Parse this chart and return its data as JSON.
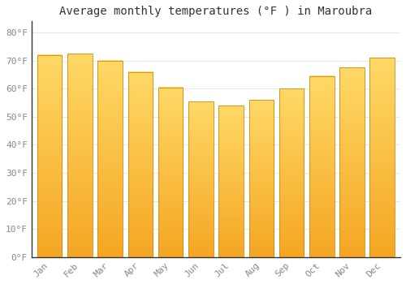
{
  "title": "Average monthly temperatures (°F ) in Maroubra",
  "months": [
    "Jan",
    "Feb",
    "Mar",
    "Apr",
    "May",
    "Jun",
    "Jul",
    "Aug",
    "Sep",
    "Oct",
    "Nov",
    "Dec"
  ],
  "values": [
    72,
    72.5,
    70,
    66,
    60.5,
    55.5,
    54,
    56,
    60,
    64.5,
    67.5,
    71
  ],
  "bar_color_bottom": "#F5A623",
  "bar_color_top": "#FFD966",
  "bar_edge_color": "#D4880A",
  "background_color": "#FFFFFF",
  "plot_bg_color": "#FFFFFF",
  "grid_color": "#DDDDDD",
  "ytick_labels": [
    "0°F",
    "10°F",
    "20°F",
    "30°F",
    "40°F",
    "50°F",
    "60°F",
    "70°F",
    "80°F"
  ],
  "ytick_values": [
    0,
    10,
    20,
    30,
    40,
    50,
    60,
    70,
    80
  ],
  "ylim": [
    0,
    84
  ],
  "title_fontsize": 10,
  "tick_fontsize": 8,
  "tick_color": "#888888",
  "spine_color": "#333333"
}
